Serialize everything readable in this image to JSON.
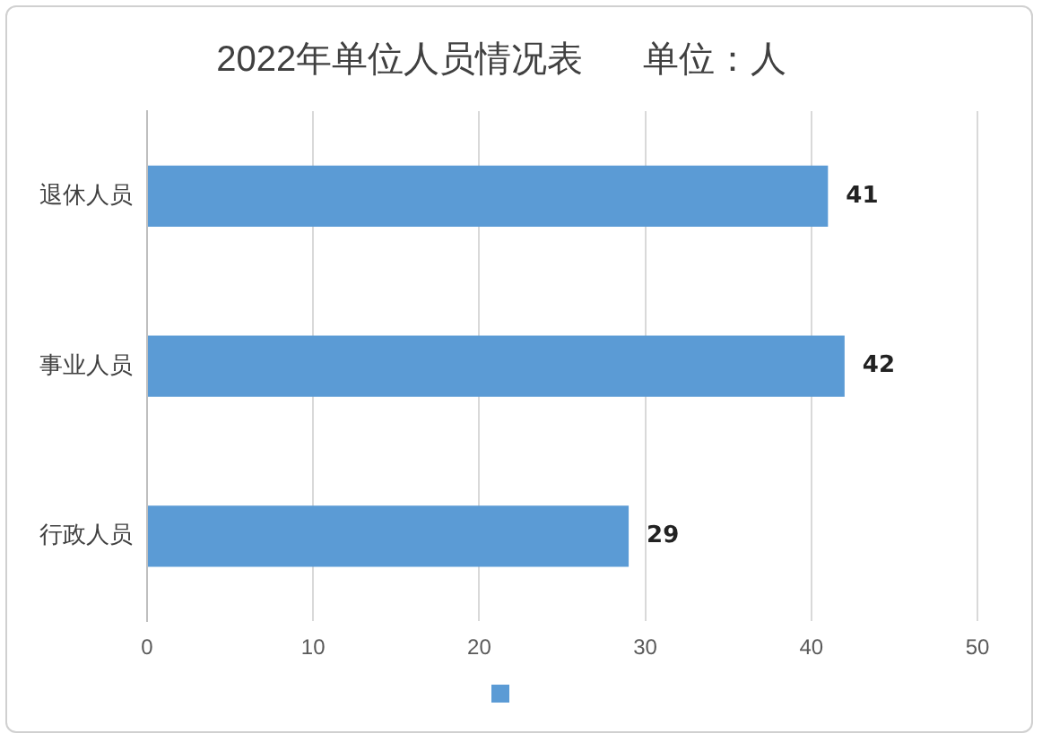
{
  "chart_data": {
    "type": "bar",
    "orientation": "horizontal",
    "title": "2022年单位人员情况表      单位：人",
    "categories": [
      "退休人员",
      "事业人员",
      "行政人员"
    ],
    "values": [
      41,
      42,
      29
    ],
    "color": "#5b9bd5",
    "xlim": [
      0,
      50
    ],
    "xticks": [
      0,
      10,
      20,
      30,
      40,
      50
    ],
    "grid": "x",
    "data_labels": true
  }
}
